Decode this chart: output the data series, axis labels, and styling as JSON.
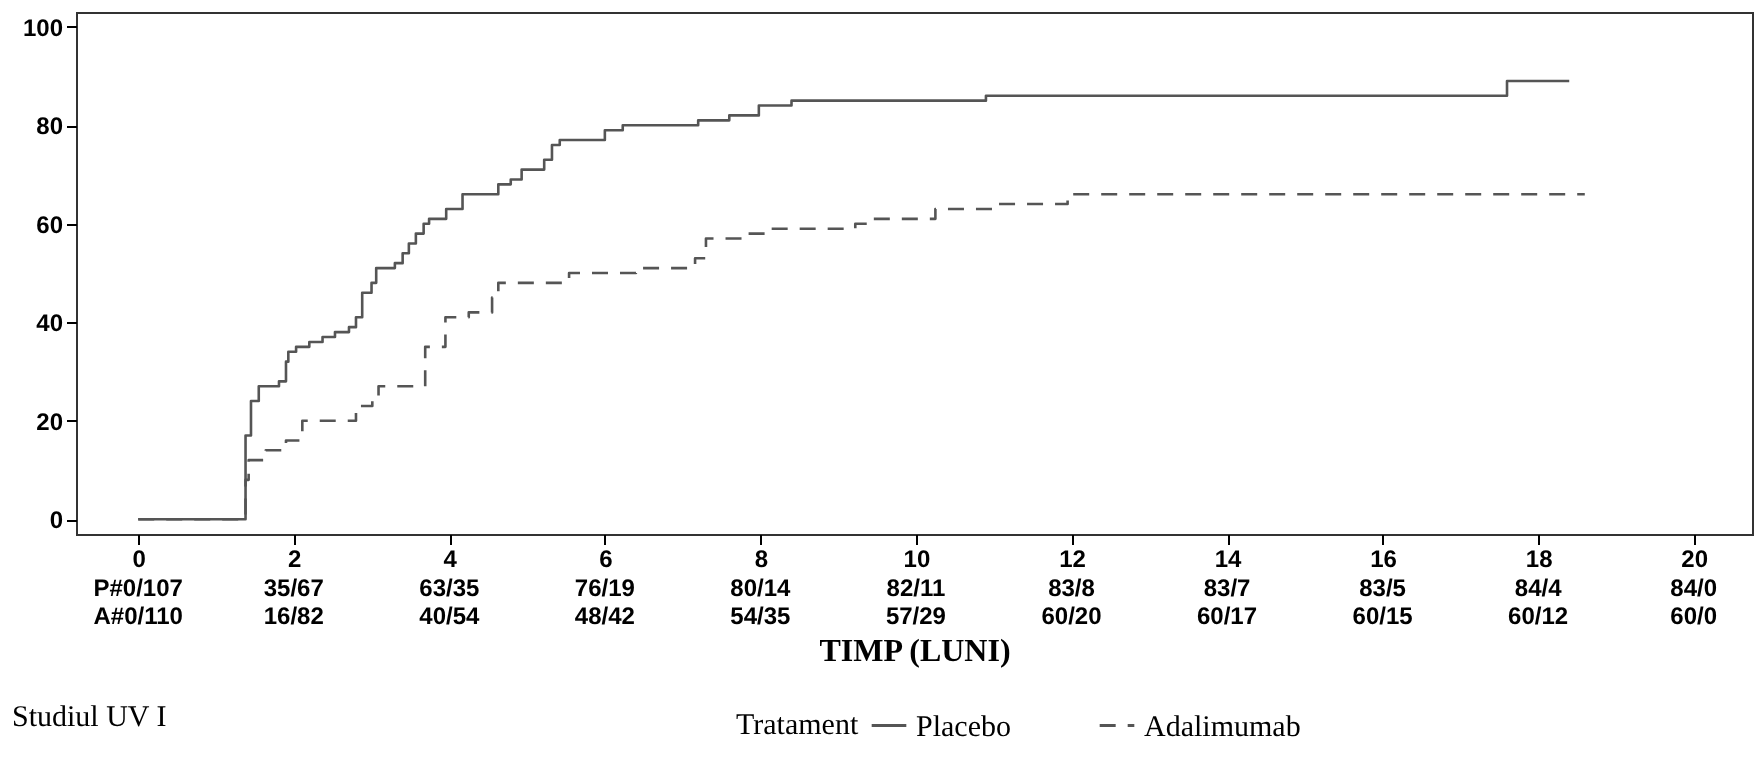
{
  "chart_data": {
    "type": "step",
    "xlabel": "TIMP (LUNI)",
    "legend_title": "Tratament",
    "annotations": [
      "Studiul UV I",
      "P#0/107",
      "35/67",
      "63/35",
      "76/19",
      "80/14",
      "82/11",
      "83/8",
      "83/7",
      "83/5",
      "84/4",
      "84/0",
      "A#0/110",
      "16/82",
      "40/54",
      "48/42",
      "54/35",
      "57/29",
      "60/20",
      "60/17",
      "60/15",
      "60/12",
      "60/0"
    ],
    "xlim": [
      -0.8,
      20.75
    ],
    "ylim": [
      -3,
      103
    ],
    "xticks": [
      0,
      2,
      4,
      6,
      8,
      10,
      12,
      14,
      16,
      18,
      20
    ],
    "yticks": [
      0,
      20,
      40,
      60,
      80,
      100
    ],
    "legend": "bottom",
    "series": [
      {
        "name": "Placebo",
        "color": "#555555",
        "line_style": "solid",
        "x": [
          0,
          1.38,
          1.45,
          1.55,
          1.81,
          1.9,
          1.93,
          2.03,
          2.2,
          2.37,
          2.53,
          2.71,
          2.8,
          2.88,
          3.0,
          3.06,
          3.3,
          3.4,
          3.48,
          3.57,
          3.67,
          3.74,
          3.96,
          4.17,
          4.63,
          4.79,
          4.93,
          5.22,
          5.32,
          5.42,
          6.0,
          6.23,
          7.2,
          7.6,
          7.98,
          8.4,
          10.9,
          17.6,
          18.4
        ],
        "values": [
          0,
          17,
          24,
          27,
          28,
          32,
          34,
          35,
          36,
          37,
          38,
          39,
          41,
          46,
          48,
          51,
          52,
          54,
          56,
          58,
          60,
          61,
          63,
          66,
          68,
          69,
          71,
          73,
          76,
          77,
          79,
          80,
          81,
          82,
          84,
          85,
          86,
          89,
          89
        ]
      },
      {
        "name": "Adalimumab",
        "color": "#555555",
        "line_style": "dashed",
        "x": [
          0,
          1.38,
          1.42,
          1.64,
          1.9,
          2.11,
          2.8,
          3.01,
          3.09,
          3.69,
          3.95,
          4.25,
          4.55,
          4.63,
          5.54,
          6.4,
          7.16,
          7.3,
          7.77,
          8.1,
          9.22,
          9.4,
          10.25,
          11.05,
          11.95,
          18.6
        ],
        "values": [
          0,
          8,
          12,
          14,
          16,
          20,
          23,
          25,
          27,
          35,
          41,
          42,
          45,
          48,
          50,
          51,
          53,
          57,
          58,
          59,
          60,
          61,
          63,
          64,
          66,
          66
        ]
      }
    ]
  }
}
